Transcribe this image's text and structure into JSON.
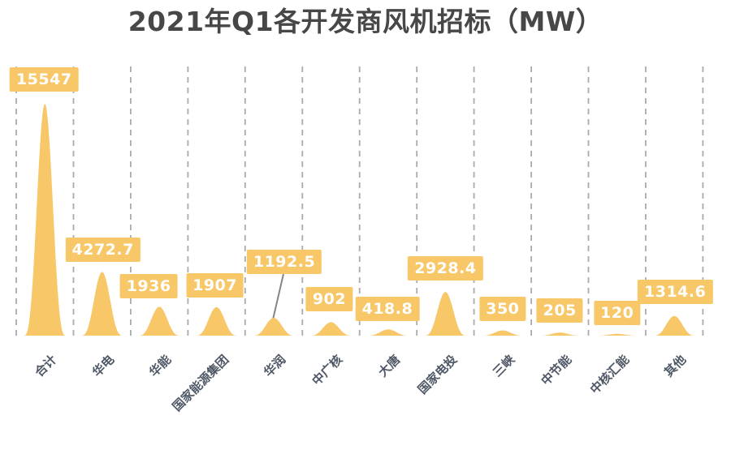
{
  "title": "2021年Q1各开发商风机招标（MW）",
  "colors": {
    "accent": "#F7C768",
    "title_text": "#474747",
    "axis_label": "#4F5866",
    "gridline": "#ABABAB",
    "label_text": "#FFFFFF",
    "leader_line": "#858585",
    "background": "#FFFFFF"
  },
  "chart_data": {
    "type": "area",
    "title": "2021年Q1各开发商风机招标（MW）",
    "unit": "MW",
    "categories": [
      "合计",
      "华电",
      "华能",
      "国家能源集团",
      "华润",
      "中广核",
      "大唐",
      "国家电投",
      "三峡",
      "中节能",
      "中核汇能",
      "其他"
    ],
    "values": [
      15547,
      4272.7,
      1936,
      1907,
      1192.5,
      902,
      418.8,
      2928.4,
      350,
      205,
      120,
      1314.6
    ],
    "value_labels": [
      "15547",
      "4272.7",
      "1936",
      "1907",
      "1192.5",
      "902",
      "418.8",
      "2928.4",
      "350",
      "205",
      "120",
      "1314.6"
    ],
    "xlabel": "",
    "ylabel": "",
    "ylim": [
      0,
      15547
    ],
    "grid": "vertical-dashed",
    "legend": "none",
    "annotation": "华润 value label connected to its peak by a leader line"
  }
}
